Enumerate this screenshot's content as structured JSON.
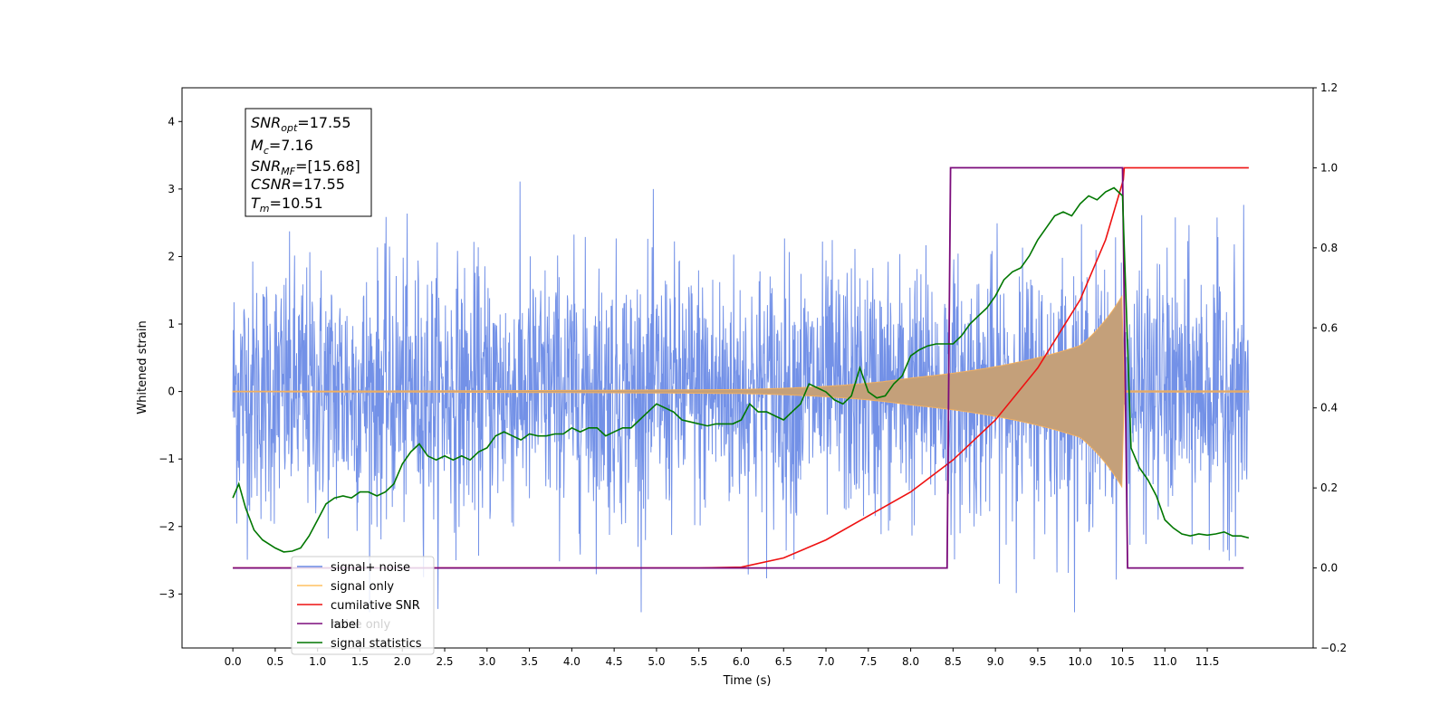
{
  "chart_data": {
    "type": "line",
    "xlabel": "Time (s)",
    "ylabel": "Whitened strain",
    "xlim": [
      -0.6,
      12.75
    ],
    "ylim": [
      -3.8,
      4.5
    ],
    "ylim_right": [
      -0.2,
      1.2
    ],
    "x_ticks": [
      0.0,
      0.5,
      1.0,
      1.5,
      2.0,
      2.5,
      3.0,
      3.5,
      4.0,
      4.5,
      5.0,
      5.5,
      6.0,
      6.5,
      7.0,
      7.5,
      8.0,
      8.5,
      9.0,
      9.5,
      10.0,
      10.5,
      11.0,
      11.5
    ],
    "x_tick_labels": [
      "0.0",
      "0.5",
      "1.0",
      "1.5",
      "2.0",
      "2.5",
      "3.0",
      "3.5",
      "4.0",
      "4.5",
      "5.0",
      "5.5",
      "6.0",
      "6.5",
      "7.0",
      "7.5",
      "8.0",
      "8.5",
      "9.0",
      "9.5",
      "10.0",
      "10.5",
      "11.0",
      "11.5"
    ],
    "y_ticks": [
      -3,
      -2,
      -1,
      0,
      1,
      2,
      3,
      4
    ],
    "y_tick_labels": [
      "−3",
      "−2",
      "−1",
      "0",
      "1",
      "2",
      "3",
      "4"
    ],
    "y_right_ticks": [
      -0.2,
      0.0,
      0.2,
      0.4,
      0.6,
      0.8,
      1.0,
      1.2
    ],
    "y_right_tick_labels": [
      "−0.2",
      "0.0",
      "0.2",
      "0.4",
      "0.6",
      "0.8",
      "1.0",
      "1.2"
    ],
    "grid": false,
    "legend_position": "lower-left",
    "annotation": {
      "lines": [
        {
          "base": "SNR",
          "sub": "opt",
          "value": "=17.55"
        },
        {
          "base": "M",
          "sub": "c",
          "value": "=7.16"
        },
        {
          "base": "SNR",
          "sub": "MF",
          "value": "=[15.68]"
        },
        {
          "base": "CSNR",
          "sub": "",
          "value": "=17.55"
        },
        {
          "base": "T",
          "sub": "m",
          "value": "=10.51"
        }
      ]
    },
    "series": [
      {
        "name": "signal+ noise",
        "color": "#6b8be6",
        "axis": "left",
        "description_values": {
          "x_start": 0.0,
          "x_end": 11.99,
          "typical_range": [
            -2.0,
            2.0
          ],
          "max": 3.2,
          "min": -3.27
        }
      },
      {
        "name": "signal only",
        "color": "#ffa500",
        "axis": "left",
        "chirp": {
          "t_start": 0.0,
          "t_merger": 10.51,
          "t_end": 11.99,
          "amplitude_at_6": 0.03,
          "amplitude_at_8": 0.2,
          "amplitude_at_10": 0.68,
          "amplitude_peak": 1.45
        }
      },
      {
        "name": "cumilative SNR",
        "color": "#ee1111",
        "axis": "right",
        "x": [
          0.0,
          5.5,
          6.0,
          6.5,
          7.0,
          7.5,
          8.0,
          8.5,
          9.0,
          9.5,
          10.0,
          10.3,
          10.51,
          10.52,
          11.99
        ],
        "y": [
          0.0,
          0.0,
          0.002,
          0.025,
          0.07,
          0.13,
          0.19,
          0.27,
          0.37,
          0.5,
          0.67,
          0.82,
          0.97,
          1.0,
          1.0
        ]
      },
      {
        "name": "label",
        "color": "#7b0b7b",
        "axis": "right",
        "x": [
          0.0,
          8.43,
          8.47,
          10.5,
          10.56,
          11.93
        ],
        "y": [
          0.0,
          0.0,
          1.0,
          1.0,
          0.0,
          0.0
        ]
      },
      {
        "name": "noise only",
        "color": "#d3d3d3",
        "axis": "left",
        "x": [],
        "y": []
      },
      {
        "name": "signal statistics",
        "color": "#007700",
        "axis": "right",
        "x": [
          0.0,
          0.07,
          0.15,
          0.25,
          0.35,
          0.5,
          0.6,
          0.7,
          0.8,
          0.9,
          1.0,
          1.1,
          1.2,
          1.3,
          1.4,
          1.5,
          1.6,
          1.7,
          1.8,
          1.9,
          2.0,
          2.1,
          2.2,
          2.3,
          2.4,
          2.5,
          2.6,
          2.7,
          2.8,
          2.9,
          3.0,
          3.1,
          3.2,
          3.3,
          3.4,
          3.5,
          3.6,
          3.7,
          3.8,
          3.9,
          4.0,
          4.1,
          4.2,
          4.3,
          4.4,
          4.5,
          4.6,
          4.7,
          4.8,
          4.9,
          5.0,
          5.1,
          5.2,
          5.3,
          5.4,
          5.5,
          5.6,
          5.7,
          5.8,
          5.9,
          6.0,
          6.1,
          6.2,
          6.3,
          6.4,
          6.5,
          6.6,
          6.7,
          6.8,
          6.9,
          7.0,
          7.1,
          7.2,
          7.3,
          7.4,
          7.5,
          7.6,
          7.7,
          7.8,
          7.9,
          8.0,
          8.1,
          8.2,
          8.3,
          8.4,
          8.5,
          8.6,
          8.7,
          8.8,
          8.9,
          9.0,
          9.1,
          9.2,
          9.3,
          9.4,
          9.5,
          9.6,
          9.7,
          9.8,
          9.9,
          10.0,
          10.1,
          10.2,
          10.3,
          10.4,
          10.5,
          10.6,
          10.7,
          10.8,
          10.9,
          11.0,
          11.1,
          11.2,
          11.3,
          11.4,
          11.5,
          11.6,
          11.7,
          11.8,
          11.9,
          11.99
        ],
        "y": [
          0.175,
          0.21,
          0.15,
          0.095,
          0.07,
          0.05,
          0.04,
          0.042,
          0.05,
          0.08,
          0.12,
          0.16,
          0.175,
          0.18,
          0.175,
          0.19,
          0.19,
          0.18,
          0.19,
          0.21,
          0.26,
          0.29,
          0.31,
          0.28,
          0.27,
          0.28,
          0.27,
          0.28,
          0.27,
          0.29,
          0.3,
          0.33,
          0.34,
          0.33,
          0.32,
          0.335,
          0.33,
          0.33,
          0.335,
          0.335,
          0.35,
          0.34,
          0.35,
          0.35,
          0.33,
          0.34,
          0.35,
          0.35,
          0.37,
          0.39,
          0.41,
          0.4,
          0.39,
          0.37,
          0.365,
          0.36,
          0.355,
          0.36,
          0.36,
          0.36,
          0.37,
          0.41,
          0.39,
          0.39,
          0.38,
          0.37,
          0.39,
          0.41,
          0.46,
          0.45,
          0.44,
          0.42,
          0.41,
          0.43,
          0.5,
          0.44,
          0.425,
          0.43,
          0.46,
          0.48,
          0.53,
          0.545,
          0.555,
          0.56,
          0.56,
          0.56,
          0.58,
          0.61,
          0.63,
          0.65,
          0.68,
          0.72,
          0.74,
          0.75,
          0.78,
          0.82,
          0.85,
          0.88,
          0.89,
          0.88,
          0.91,
          0.93,
          0.92,
          0.94,
          0.95,
          0.93,
          0.3,
          0.25,
          0.22,
          0.18,
          0.12,
          0.1,
          0.085,
          0.08,
          0.085,
          0.082,
          0.085,
          0.09,
          0.08,
          0.08,
          0.075
        ]
      }
    ]
  }
}
